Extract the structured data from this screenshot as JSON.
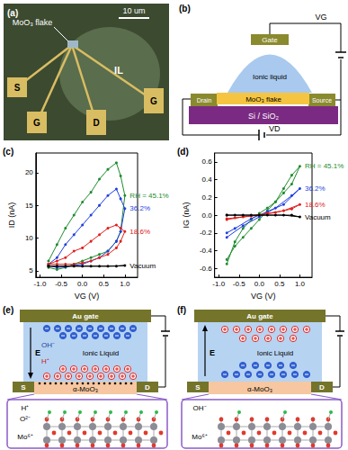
{
  "panel_labels": [
    "(a)",
    "(b)",
    "(c)",
    "(d)",
    "(e)",
    "(f)"
  ],
  "micrograph": {
    "flake": "MoO₃ flake",
    "scale_bar": "10 um",
    "electrodes": [
      "S",
      "G",
      "D",
      "G"
    ],
    "liquid": "IL"
  },
  "device_schematic": {
    "gate": "Gate",
    "liquid": "Ionic liquid",
    "flake": "MoO₃ flake",
    "drain": "Drain",
    "source": "Source",
    "substrate": "Si / SiO₂",
    "gate_voltage": "VG",
    "drain_voltage": "VD"
  },
  "chart_data": [
    {
      "type": "line",
      "x_label": "VG (V)",
      "y_label": "ID (nA)",
      "xlim": [
        -1.1,
        1.3
      ],
      "xticks": [
        {
          "value": -1,
          "label": "-1.0"
        },
        {
          "value": -0.5,
          "label": "-0.5"
        },
        {
          "value": 0,
          "label": "0.0"
        },
        {
          "value": 0.5,
          "label": "0.5"
        },
        {
          "value": 1,
          "label": "1.0"
        }
      ],
      "ylim": [
        4,
        23
      ],
      "yticks": [
        5,
        10,
        15,
        20
      ],
      "grid": false,
      "marker": "circle",
      "line_style": "solid",
      "series": [
        {
          "name": "RH = 45.1%",
          "color": "#1e8c2e",
          "x": [
            -0.8,
            -0.6,
            -0.4,
            -0.2,
            0,
            0.2,
            0.4,
            0.6,
            0.8,
            0.9,
            1.0,
            0.9,
            0.8,
            0.6,
            0.4,
            0.2,
            0,
            -0.2,
            -0.4,
            -0.6,
            -0.8
          ],
          "values": [
            6.5,
            9,
            11.5,
            13.5,
            15.5,
            17,
            19,
            20.5,
            21.5,
            19.5,
            16.5,
            11,
            9.5,
            8,
            7.5,
            7,
            6.5,
            6,
            5.5,
            5.2,
            5.5
          ]
        },
        {
          "name": "36.2%",
          "color": "#1f3fe0",
          "x": [
            -0.8,
            -0.6,
            -0.4,
            -0.2,
            0,
            0.2,
            0.4,
            0.6,
            0.8,
            0.9,
            1.0,
            0.9,
            0.8,
            0.6,
            0.4,
            0.2,
            0,
            -0.2,
            -0.4,
            -0.6,
            -0.8
          ],
          "values": [
            6,
            7,
            9,
            10.5,
            12,
            13.5,
            15,
            16.5,
            17.5,
            16,
            14.5,
            11,
            9.5,
            8,
            7,
            6.5,
            6,
            5.8,
            5.6,
            5.5,
            5.8
          ]
        },
        {
          "name": "18.6%",
          "color": "#e0201c",
          "x": [
            -0.8,
            -0.6,
            -0.4,
            -0.2,
            0,
            0.2,
            0.4,
            0.6,
            0.8,
            0.9,
            1.0,
            0.9,
            0.8,
            0.6,
            0.4,
            0.2,
            0,
            -0.2,
            -0.4,
            -0.6,
            -0.8
          ],
          "values": [
            6,
            6.5,
            7,
            8,
            8.5,
            9.5,
            10.5,
            11.5,
            12,
            11.5,
            11,
            9.5,
            8.5,
            7.5,
            7,
            6.5,
            6.2,
            6,
            6,
            6,
            6
          ]
        },
        {
          "name": "Vacuum",
          "color": "#000000",
          "x": [
            -0.8,
            -0.4,
            0,
            0.4,
            0.8,
            1.0,
            0.6,
            0.2,
            -0.2,
            -0.6,
            -0.8
          ],
          "values": [
            5.7,
            5.7,
            5.7,
            5.7,
            5.7,
            5.8,
            5.7,
            5.7,
            5.7,
            5.7,
            5.7
          ]
        }
      ]
    },
    {
      "type": "line",
      "x_label": "VG (V)",
      "y_label": "IG (nA)",
      "xlim": [
        -1.1,
        1.3
      ],
      "xticks": [
        {
          "value": -1,
          "label": "-1.0"
        },
        {
          "value": -0.5,
          "label": "-0.5"
        },
        {
          "value": 0,
          "label": "0.0"
        },
        {
          "value": 0.5,
          "label": "0.5"
        },
        {
          "value": 1,
          "label": "1.0"
        }
      ],
      "ylim": [
        -0.7,
        0.7
      ],
      "yticks": [
        -0.6,
        -0.4,
        -0.2,
        {
          "value": 0,
          "label": "0.0"
        },
        0.2,
        0.4,
        0.6
      ],
      "grid": false,
      "marker": "circle",
      "line_style": "solid",
      "series": [
        {
          "name": "RH = 45.1%",
          "color": "#1e8c2e",
          "x": [
            -0.8,
            -0.6,
            -0.4,
            -0.2,
            0,
            0.2,
            0.4,
            0.6,
            0.8,
            1.0,
            0.8,
            0.6,
            0.4,
            0.2,
            0,
            -0.2,
            -0.4,
            -0.6,
            -0.8
          ],
          "values": [
            -0.5,
            -0.35,
            -0.25,
            -0.15,
            -0.05,
            0.05,
            0.15,
            0.3,
            0.45,
            0.55,
            0.35,
            0.25,
            0.15,
            0.08,
            0.02,
            -0.05,
            -0.15,
            -0.3,
            -0.55
          ]
        },
        {
          "name": "36.2%",
          "color": "#1f3fe0",
          "x": [
            -0.8,
            -0.4,
            0,
            0.4,
            0.8,
            1.0,
            0.6,
            0.2,
            -0.2,
            -0.6,
            -0.8
          ],
          "values": [
            -0.25,
            -0.12,
            -0.02,
            0.08,
            0.22,
            0.3,
            0.12,
            0.04,
            -0.04,
            -0.15,
            -0.2
          ]
        },
        {
          "name": "18.6%",
          "color": "#e0201c",
          "x": [
            -0.8,
            -0.4,
            0,
            0.4,
            0.8,
            1.0,
            0.6,
            0.2,
            -0.2,
            -0.6,
            -0.8
          ],
          "values": [
            -0.05,
            -0.02,
            0,
            0.03,
            0.07,
            0.12,
            0.05,
            0.02,
            -0.01,
            -0.03,
            -0.04
          ]
        },
        {
          "name": "Vacuum",
          "color": "#000000",
          "x": [
            -0.8,
            -0.4,
            0,
            0.4,
            0.8,
            1.0,
            0.6,
            0.2,
            -0.2,
            -0.6,
            -0.8
          ],
          "values": [
            0,
            0,
            0,
            0,
            0,
            -0.02,
            0,
            0,
            0,
            0,
            0
          ]
        }
      ]
    }
  ],
  "mechanisms": [
    {
      "gate": "Au gate",
      "liquid": "Ionic Liquid",
      "field": "E",
      "source": "S",
      "drain": "D",
      "channel": "α-MoO₃",
      "ion_labels": [
        "OH⁻",
        "H⁺"
      ],
      "inset_labels": [
        "H⁺",
        "O²⁻",
        "Mo⁶⁺"
      ]
    },
    {
      "gate": "Au gate",
      "liquid": "Ionic Liquid",
      "field": "E",
      "source": "S",
      "drain": "D",
      "channel": "α-MoO₃",
      "inset_labels": [
        "OH⁻",
        "Mo⁶⁺"
      ]
    }
  ]
}
